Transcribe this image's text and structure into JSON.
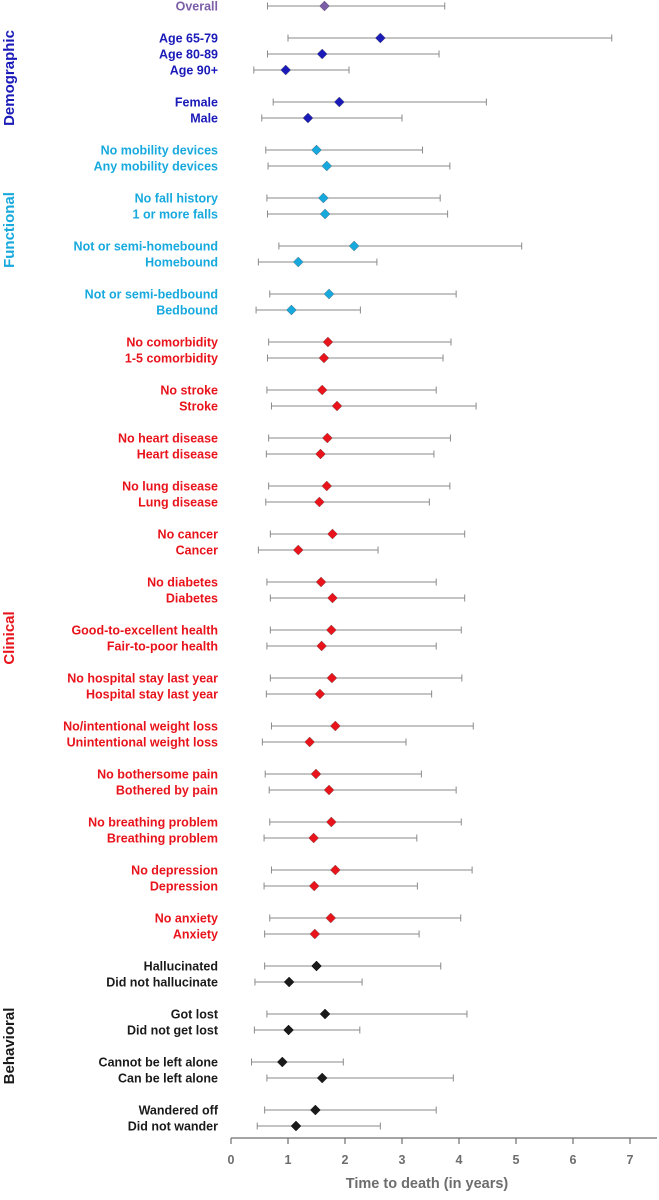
{
  "chart_data": {
    "type": "scatter",
    "subtype": "forest-plot",
    "title": "",
    "xlabel": "Time to death (in years)",
    "ylabel": "",
    "xlim": [
      0,
      7
    ],
    "xticks": [
      0,
      1,
      2,
      3,
      4,
      5,
      6,
      7
    ],
    "grid": false,
    "colors": {
      "overall": "#7b5ea7",
      "demographic": "#1a1ab8",
      "functional": "#17a9de",
      "clinical": "#e8131b",
      "behavioral": "#1a1a1a",
      "whisker": "#8a8a8a",
      "axis": "#6d6d6d"
    },
    "groups": [
      {
        "name": "Demographic",
        "color_key": "demographic",
        "first": 1,
        "last": 5
      },
      {
        "name": "Functional",
        "color_key": "functional",
        "first": 6,
        "last": 13
      },
      {
        "name": "Clinical",
        "color_key": "clinical",
        "first": 14,
        "last": 39
      },
      {
        "name": "Behavioral",
        "color_key": "behavioral",
        "first": 40,
        "last": 47
      }
    ],
    "rows": [
      {
        "label": "Overall",
        "color_key": "overall",
        "est": 1.64,
        "lo": 0.64,
        "hi": 3.75
      },
      {
        "label": "Age 65-79",
        "color_key": "demographic",
        "est": 2.62,
        "lo": 1.0,
        "hi": 6.68
      },
      {
        "label": "Age 80-89",
        "color_key": "demographic",
        "est": 1.6,
        "lo": 0.64,
        "hi": 3.65
      },
      {
        "label": "Age 90+",
        "color_key": "demographic",
        "est": 0.96,
        "lo": 0.4,
        "hi": 2.07
      },
      {
        "label": "Female",
        "color_key": "demographic",
        "est": 1.9,
        "lo": 0.74,
        "hi": 4.48
      },
      {
        "label": "Male",
        "color_key": "demographic",
        "est": 1.35,
        "lo": 0.54,
        "hi": 3.0
      },
      {
        "label": "No mobility devices",
        "color_key": "functional",
        "est": 1.5,
        "lo": 0.61,
        "hi": 3.36
      },
      {
        "label": "Any mobility devices",
        "color_key": "functional",
        "est": 1.68,
        "lo": 0.65,
        "hi": 3.84
      },
      {
        "label": "No fall history",
        "color_key": "functional",
        "est": 1.62,
        "lo": 0.63,
        "hi": 3.67
      },
      {
        "label": "1 or more falls",
        "color_key": "functional",
        "est": 1.65,
        "lo": 0.64,
        "hi": 3.8
      },
      {
        "label": "Not  or semi-homebound",
        "color_key": "functional",
        "est": 2.16,
        "lo": 0.84,
        "hi": 5.1
      },
      {
        "label": "Homebound",
        "color_key": "functional",
        "est": 1.18,
        "lo": 0.48,
        "hi": 2.56
      },
      {
        "label": "Not or semi-bedbound",
        "color_key": "functional",
        "est": 1.72,
        "lo": 0.68,
        "hi": 3.95
      },
      {
        "label": "Bedbound",
        "color_key": "functional",
        "est": 1.06,
        "lo": 0.44,
        "hi": 2.27
      },
      {
        "label": "No comorbidity",
        "color_key": "clinical",
        "est": 1.7,
        "lo": 0.66,
        "hi": 3.86
      },
      {
        "label": "1-5 comorbidity",
        "color_key": "clinical",
        "est": 1.63,
        "lo": 0.64,
        "hi": 3.72
      },
      {
        "label": "No stroke",
        "color_key": "clinical",
        "est": 1.6,
        "lo": 0.63,
        "hi": 3.6
      },
      {
        "label": "Stroke",
        "color_key": "clinical",
        "est": 1.86,
        "lo": 0.71,
        "hi": 4.3
      },
      {
        "label": "No heart disease",
        "color_key": "clinical",
        "est": 1.69,
        "lo": 0.66,
        "hi": 3.85
      },
      {
        "label": "Heart disease",
        "color_key": "clinical",
        "est": 1.57,
        "lo": 0.62,
        "hi": 3.56
      },
      {
        "label": "No lung disease",
        "color_key": "clinical",
        "est": 1.68,
        "lo": 0.66,
        "hi": 3.84
      },
      {
        "label": "Lung disease",
        "color_key": "clinical",
        "est": 1.55,
        "lo": 0.61,
        "hi": 3.48
      },
      {
        "label": "No cancer",
        "color_key": "clinical",
        "est": 1.78,
        "lo": 0.69,
        "hi": 4.1
      },
      {
        "label": "Cancer",
        "color_key": "clinical",
        "est": 1.18,
        "lo": 0.48,
        "hi": 2.58
      },
      {
        "label": "No diabetes",
        "color_key": "clinical",
        "est": 1.58,
        "lo": 0.63,
        "hi": 3.6
      },
      {
        "label": "Diabetes",
        "color_key": "clinical",
        "est": 1.78,
        "lo": 0.69,
        "hi": 4.1
      },
      {
        "label": "Good-to-excellent health",
        "color_key": "clinical",
        "est": 1.76,
        "lo": 0.69,
        "hi": 4.04
      },
      {
        "label": "Fair-to-poor health",
        "color_key": "clinical",
        "est": 1.59,
        "lo": 0.63,
        "hi": 3.6
      },
      {
        "label": "No hospital stay last year",
        "color_key": "clinical",
        "est": 1.77,
        "lo": 0.69,
        "hi": 4.05
      },
      {
        "label": "Hospital stay last year",
        "color_key": "clinical",
        "est": 1.56,
        "lo": 0.62,
        "hi": 3.52
      },
      {
        "label": "No/intentional weight loss",
        "color_key": "clinical",
        "est": 1.83,
        "lo": 0.71,
        "hi": 4.25
      },
      {
        "label": "Unintentional weight loss",
        "color_key": "clinical",
        "est": 1.38,
        "lo": 0.55,
        "hi": 3.07
      },
      {
        "label": "No bothersome pain",
        "color_key": "clinical",
        "est": 1.49,
        "lo": 0.6,
        "hi": 3.34
      },
      {
        "label": "Bothered by pain",
        "color_key": "clinical",
        "est": 1.72,
        "lo": 0.67,
        "hi": 3.95
      },
      {
        "label": "No breathing problem",
        "color_key": "clinical",
        "est": 1.76,
        "lo": 0.68,
        "hi": 4.04
      },
      {
        "label": "Breathing problem",
        "color_key": "clinical",
        "est": 1.45,
        "lo": 0.58,
        "hi": 3.26
      },
      {
        "label": "No depression",
        "color_key": "clinical",
        "est": 1.83,
        "lo": 0.71,
        "hi": 4.23
      },
      {
        "label": "Depression",
        "color_key": "clinical",
        "est": 1.46,
        "lo": 0.58,
        "hi": 3.27
      },
      {
        "label": "No anxiety",
        "color_key": "clinical",
        "est": 1.75,
        "lo": 0.68,
        "hi": 4.03
      },
      {
        "label": "Anxiety",
        "color_key": "clinical",
        "est": 1.47,
        "lo": 0.59,
        "hi": 3.3
      },
      {
        "label": "Hallucinated",
        "color_key": "behavioral",
        "est": 1.5,
        "lo": 0.59,
        "hi": 3.68
      },
      {
        "label": "Did not hallucinate",
        "color_key": "behavioral",
        "est": 1.02,
        "lo": 0.42,
        "hi": 2.3
      },
      {
        "label": "Got lost",
        "color_key": "behavioral",
        "est": 1.65,
        "lo": 0.63,
        "hi": 4.14
      },
      {
        "label": "Did not get lost",
        "color_key": "behavioral",
        "est": 1.01,
        "lo": 0.41,
        "hi": 2.26
      },
      {
        "label": "Cannot be left alone",
        "color_key": "behavioral",
        "est": 0.9,
        "lo": 0.36,
        "hi": 1.97
      },
      {
        "label": "Can be left alone",
        "color_key": "behavioral",
        "est": 1.6,
        "lo": 0.63,
        "hi": 3.9
      },
      {
        "label": "Wandered off",
        "color_key": "behavioral",
        "est": 1.48,
        "lo": 0.59,
        "hi": 3.6
      },
      {
        "label": "Did not wander",
        "color_key": "behavioral",
        "est": 1.14,
        "lo": 0.46,
        "hi": 2.62
      }
    ]
  }
}
